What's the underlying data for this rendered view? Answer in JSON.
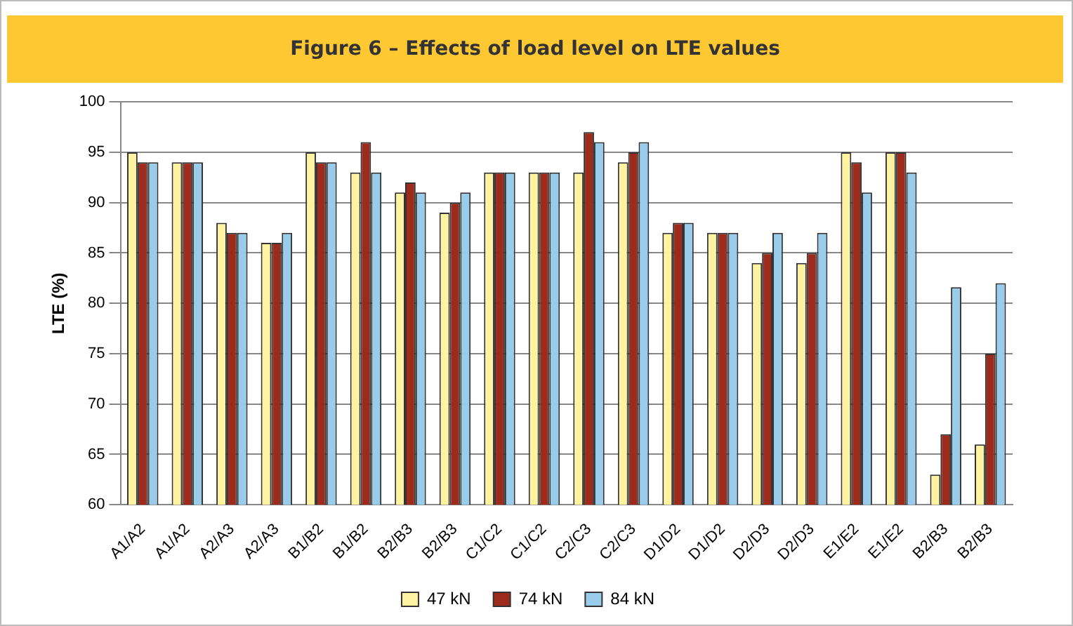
{
  "chart_data": {
    "type": "bar",
    "title": "Figure 6 – Effects of load level on LTE values",
    "ylabel": "LTE (%)",
    "categories": [
      "A1/A2",
      "A1/A2",
      "A2/A3",
      "A2/A3",
      "B1/B2",
      "B1/B2",
      "B2/B3",
      "B2/B3",
      "C1/C2",
      "C1/C2",
      "C2/C3",
      "C2/C3",
      "D1/D2",
      "D1/D2",
      "D2/D3",
      "D2/D3",
      "E1/E2",
      "E1/E2",
      "B2/B3",
      "B2/B3"
    ],
    "series": [
      {
        "name": "47 kN",
        "color": "#fff2a0",
        "values": [
          95,
          94,
          88,
          86,
          95,
          93,
          91,
          89,
          93,
          93,
          93,
          94,
          87,
          87,
          84,
          84,
          95,
          95,
          63,
          66
        ]
      },
      {
        "name": "74 kN",
        "color": "#9c2b1c",
        "values": [
          94,
          94,
          87,
          86,
          94,
          96,
          92,
          90,
          93,
          93,
          97,
          95,
          88,
          87,
          85,
          85,
          94,
          95,
          67,
          75
        ]
      },
      {
        "name": "84 kN",
        "color": "#99ccea",
        "values": [
          94,
          94,
          87,
          87,
          94,
          93,
          91,
          91,
          93,
          93,
          96,
          96,
          88,
          87,
          87,
          87,
          91,
          93,
          81.6,
          82
        ]
      }
    ],
    "ylim": [
      60,
      100
    ],
    "yticks": [
      60,
      65,
      70,
      75,
      80,
      85,
      90,
      95,
      100
    ],
    "grid": "y",
    "legend": "bottom"
  }
}
